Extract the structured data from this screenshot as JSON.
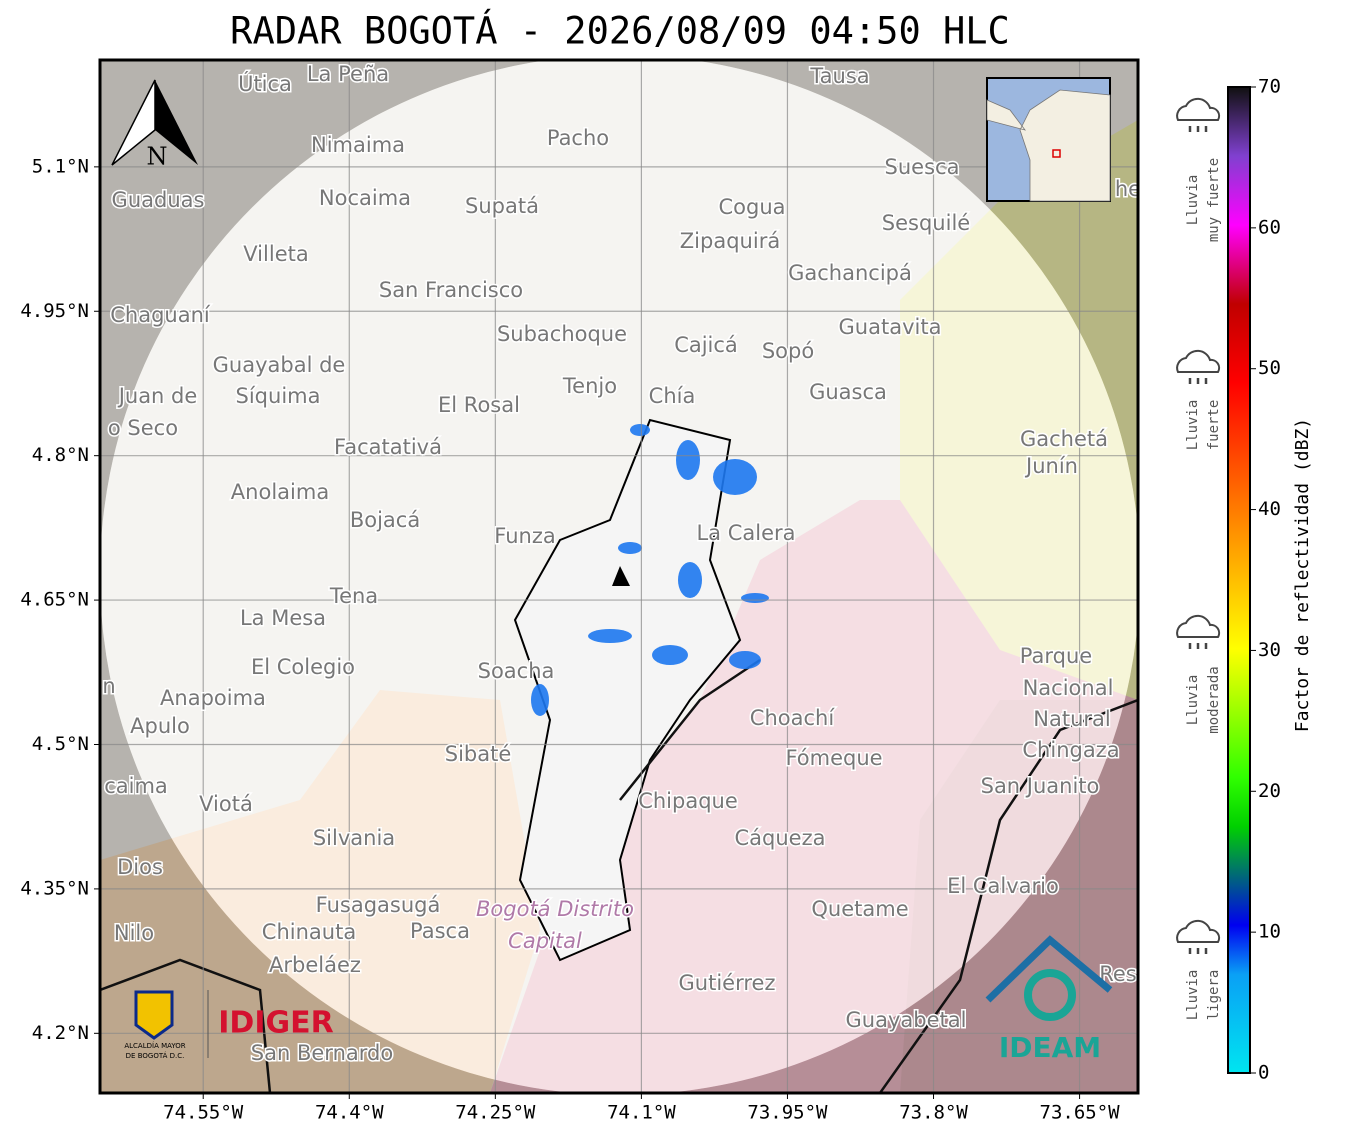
{
  "title": "RADAR BOGOTÁ - 2026/08/09 04:50 HLC",
  "map": {
    "north_label": "N",
    "lon_range": [
      -74.656,
      -73.59
    ],
    "lat_range": [
      4.138,
      5.211
    ],
    "lon_ticks": [
      {
        "value": -74.55,
        "label": "74.55°W"
      },
      {
        "value": -74.4,
        "label": "74.4°W"
      },
      {
        "value": -74.25,
        "label": "74.25°W"
      },
      {
        "value": -74.1,
        "label": "74.1°W"
      },
      {
        "value": -73.95,
        "label": "73.95°W"
      },
      {
        "value": -73.8,
        "label": "73.8°W"
      },
      {
        "value": -73.65,
        "label": "73.65°W"
      }
    ],
    "lat_ticks": [
      {
        "value": 5.1,
        "label": "5.1°N"
      },
      {
        "value": 4.95,
        "label": "4.95°N"
      },
      {
        "value": 4.8,
        "label": "4.8°N"
      },
      {
        "value": 4.65,
        "label": "4.65°N"
      },
      {
        "value": 4.5,
        "label": "4.5°N"
      },
      {
        "value": 4.35,
        "label": "4.35°N"
      },
      {
        "value": 4.2,
        "label": "4.2°N"
      }
    ],
    "places": [
      "La Peña",
      "Útica",
      "Tausa",
      "Pacho",
      "Nimaima",
      "Suesca",
      "Guaduas",
      "Nocaima",
      "Supatá",
      "Cogua",
      "Sesquilé",
      "Zipaquirá",
      "Villeta",
      "Gachancipá",
      "San Francisco",
      "Chaguaní",
      "Guatavita",
      "Subachoque",
      "Cajicá",
      "Sopó",
      "Guayabal de",
      "Síquima",
      "Tenjo",
      "Chía",
      "Guasca",
      "Juan de",
      "o Seco",
      "El Rosal",
      "Gachetá",
      "Junín",
      "Facatativá",
      "Anolaima",
      "Bojacá",
      "Funza",
      "La Calera",
      "Tena",
      "La Mesa",
      "Parque",
      "Nacional",
      "Natural",
      "Chingaza",
      "El Colegio",
      "Soacha",
      "Anapoima",
      "Apulo",
      "Choachí",
      "Sibaté",
      "Fómeque",
      "San Juanito",
      "caima",
      "Viotá",
      "Chipaque",
      "Silvania",
      "Cáqueza",
      "Dios",
      "El Calvario",
      "Fusagasugá",
      "Bogotá Distrito",
      "Capital",
      "Quetame",
      "Nilo",
      "Chinauta",
      "Pasca",
      "Arbeláez",
      "Gutiérrez",
      "Res",
      "Guayabetal",
      "San Bernardo",
      "n",
      "he"
    ]
  },
  "logos": {
    "alcaldia": "ALCALDÍA MAYOR",
    "alcaldia_sub": "DE BOGOTÁ D.C.",
    "idiger": "IDIGER",
    "ideam": "IDEAM"
  },
  "colorbar": {
    "label": "Factor de reflectividad (dBZ)",
    "range": [
      0,
      70
    ],
    "ticks": [
      0,
      10,
      20,
      30,
      40,
      50,
      60,
      70
    ]
  },
  "legend": [
    {
      "line1": "Lluvia",
      "line2": "muy fuerte"
    },
    {
      "line1": "Lluvia",
      "line2": "fuerte"
    },
    {
      "line1": "Lluvia",
      "line2": "moderada"
    },
    {
      "line1": "Lluvia",
      "line2": "ligera"
    }
  ]
}
